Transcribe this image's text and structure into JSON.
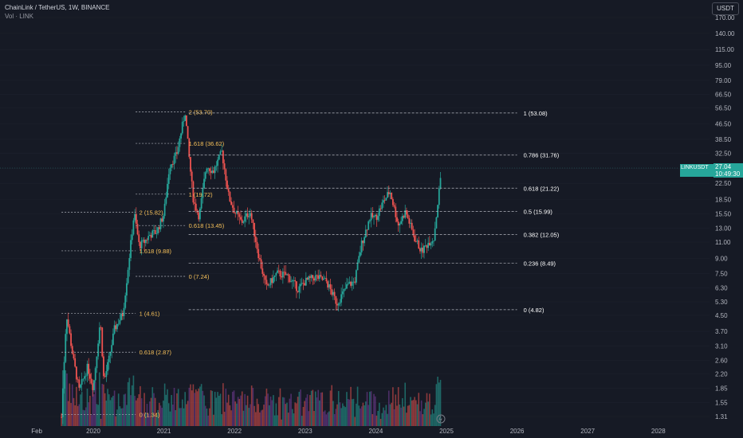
{
  "header": {
    "title": "ChainLink / TetherUS, 1W, BINANCE",
    "volume_label": "Vol · LINK"
  },
  "toolbar": {
    "currency_label": "USDT"
  },
  "last_price": {
    "symbol": "LINKUSDT",
    "price": "27.04",
    "countdown": "10:49:30",
    "color": "#26a69a"
  },
  "colors": {
    "background": "#161a25",
    "up": "#26a69a",
    "down": "#ef5350",
    "fib_left": "#f5c05a",
    "fib_right": "#ffffff",
    "volume_purple": "#7b3fa0"
  },
  "chart_data": {
    "type": "candlestick",
    "y_scale": "log",
    "y_ticks": [
      "170.00",
      "140.00",
      "115.00",
      "95.00",
      "79.00",
      "66.50",
      "56.50",
      "46.50",
      "38.50",
      "32.50",
      "27.04",
      "22.50",
      "18.50",
      "15.50",
      "13.00",
      "11.00",
      "9.00",
      "7.50",
      "6.30",
      "5.30",
      "4.50",
      "3.70",
      "3.10",
      "2.60",
      "2.20",
      "1.85",
      "1.55",
      "1.31"
    ],
    "y_tick_values": [
      170,
      140,
      115,
      95,
      79,
      66.5,
      56.5,
      46.5,
      38.5,
      32.5,
      27.04,
      22.5,
      18.5,
      15.5,
      13,
      11,
      9,
      7.5,
      6.3,
      5.3,
      4.5,
      3.7,
      3.1,
      2.6,
      2.2,
      1.85,
      1.55,
      1.31
    ],
    "x_ticks": [
      "Feb",
      "2020",
      "2021",
      "2022",
      "2023",
      "2024",
      "2025",
      "2026",
      "2027",
      "2028"
    ],
    "fib_left": [
      {
        "label": "2 (53.70)",
        "value": 53.7
      },
      {
        "label": "1.618 (36.62)",
        "value": 36.62
      },
      {
        "label": "1 (19.72)",
        "value": 19.72
      },
      {
        "label": "0.618 (13.45)",
        "value": 13.45
      },
      {
        "label": "0 (7.24)",
        "value": 7.24
      },
      {
        "label": "2 (15.82)",
        "value": 15.82
      },
      {
        "label": "1.618 (9.88)",
        "value": 9.88
      },
      {
        "label": "1 (4.61)",
        "value": 4.61
      },
      {
        "label": "0.618 (2.87)",
        "value": 2.87
      },
      {
        "label": "0 (1.34)",
        "value": 1.34
      }
    ],
    "fib_right": [
      {
        "label": "1 (53.08)",
        "value": 53.08
      },
      {
        "label": "0.786 (31.76)",
        "value": 31.76
      },
      {
        "label": "0.618 (21.22)",
        "value": 21.22
      },
      {
        "label": "0.5 (15.99)",
        "value": 15.99
      },
      {
        "label": "0.382 (12.05)",
        "value": 12.05
      },
      {
        "label": "0.236 (8.49)",
        "value": 8.49
      },
      {
        "label": "0 (4.82)",
        "value": 4.82
      }
    ],
    "price_path": [
      {
        "t": 2019.55,
        "v": 1.3
      },
      {
        "t": 2019.62,
        "v": 4.6
      },
      {
        "t": 2019.72,
        "v": 2.6
      },
      {
        "t": 2019.8,
        "v": 1.8
      },
      {
        "t": 2019.92,
        "v": 2.4
      },
      {
        "t": 2020.0,
        "v": 1.85
      },
      {
        "t": 2020.1,
        "v": 4.3
      },
      {
        "t": 2020.15,
        "v": 2.0
      },
      {
        "t": 2020.22,
        "v": 2.6
      },
      {
        "t": 2020.3,
        "v": 3.8
      },
      {
        "t": 2020.42,
        "v": 4.6
      },
      {
        "t": 2020.5,
        "v": 8.5
      },
      {
        "t": 2020.58,
        "v": 15.8
      },
      {
        "t": 2020.65,
        "v": 10.5
      },
      {
        "t": 2020.72,
        "v": 11.0
      },
      {
        "t": 2020.8,
        "v": 12.0
      },
      {
        "t": 2020.9,
        "v": 12.5
      },
      {
        "t": 2021.0,
        "v": 15.5
      },
      {
        "t": 2021.08,
        "v": 28.0
      },
      {
        "t": 2021.18,
        "v": 32.0
      },
      {
        "t": 2021.3,
        "v": 53.7
      },
      {
        "t": 2021.36,
        "v": 30.0
      },
      {
        "t": 2021.42,
        "v": 18.0
      },
      {
        "t": 2021.5,
        "v": 15.0
      },
      {
        "t": 2021.6,
        "v": 28.0
      },
      {
        "t": 2021.7,
        "v": 26.0
      },
      {
        "t": 2021.82,
        "v": 33.0
      },
      {
        "t": 2021.92,
        "v": 19.0
      },
      {
        "t": 2022.0,
        "v": 16.0
      },
      {
        "t": 2022.1,
        "v": 14.0
      },
      {
        "t": 2022.22,
        "v": 16.0
      },
      {
        "t": 2022.35,
        "v": 9.0
      },
      {
        "t": 2022.45,
        "v": 6.3
      },
      {
        "t": 2022.6,
        "v": 7.5
      },
      {
        "t": 2022.75,
        "v": 7.3
      },
      {
        "t": 2022.9,
        "v": 6.2
      },
      {
        "t": 2023.0,
        "v": 6.8
      },
      {
        "t": 2023.15,
        "v": 7.2
      },
      {
        "t": 2023.3,
        "v": 6.8
      },
      {
        "t": 2023.45,
        "v": 5.2
      },
      {
        "t": 2023.6,
        "v": 6.5
      },
      {
        "t": 2023.7,
        "v": 6.8
      },
      {
        "t": 2023.8,
        "v": 10.8
      },
      {
        "t": 2023.92,
        "v": 15.0
      },
      {
        "t": 2024.0,
        "v": 14.8
      },
      {
        "t": 2024.1,
        "v": 17.8
      },
      {
        "t": 2024.2,
        "v": 20.5
      },
      {
        "t": 2024.32,
        "v": 13.5
      },
      {
        "t": 2024.42,
        "v": 16.0
      },
      {
        "t": 2024.55,
        "v": 11.5
      },
      {
        "t": 2024.65,
        "v": 9.8
      },
      {
        "t": 2024.75,
        "v": 11.0
      },
      {
        "t": 2024.82,
        "v": 11.5
      },
      {
        "t": 2024.88,
        "v": 18.0
      },
      {
        "t": 2024.93,
        "v": 27.04
      }
    ]
  }
}
